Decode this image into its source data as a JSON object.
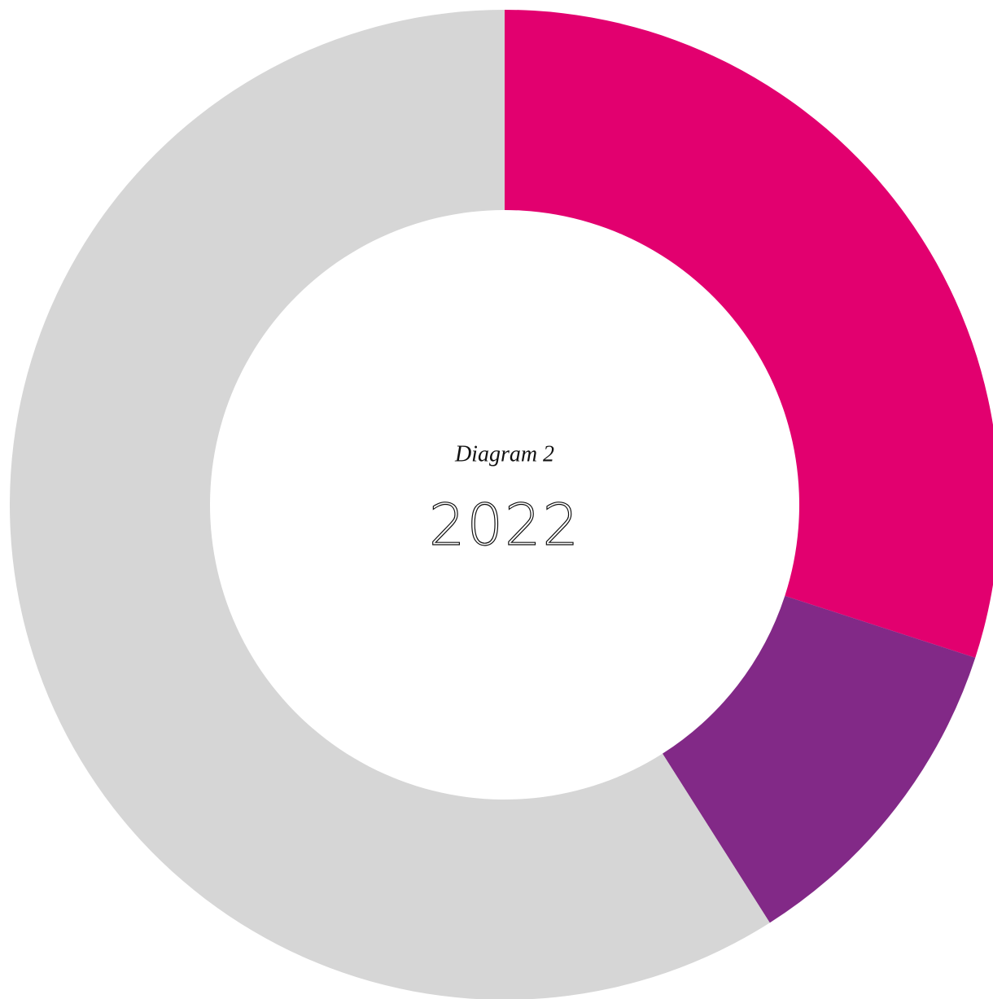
{
  "chart_data": {
    "type": "donut",
    "title": "Diagram 2",
    "subtitle": "2022",
    "values": [
      30,
      11,
      59
    ],
    "colors": [
      "#e2006f",
      "#822987",
      "#d6d6d6"
    ]
  }
}
